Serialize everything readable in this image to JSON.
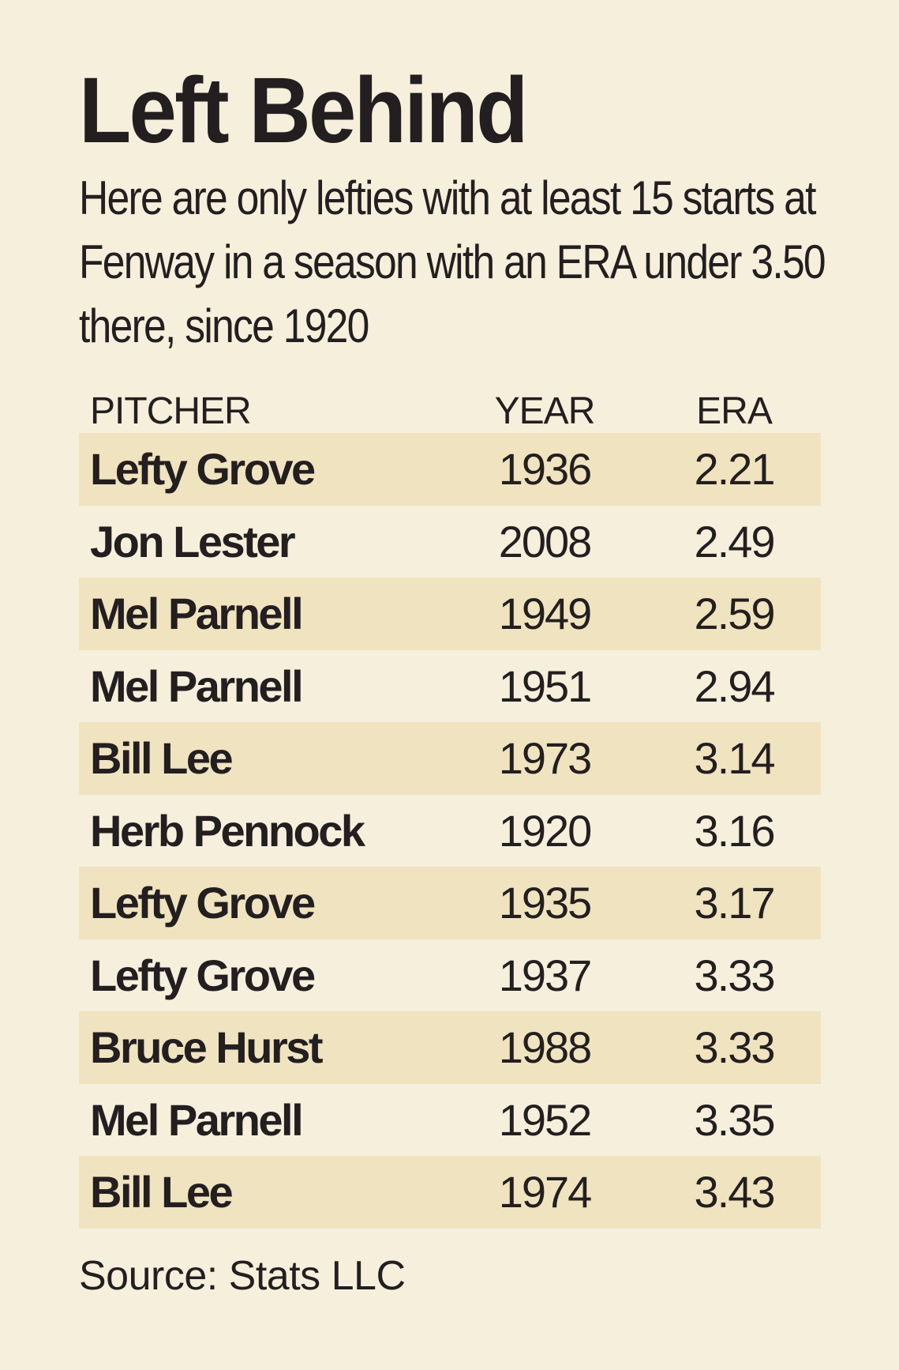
{
  "title": "Left Behind",
  "subtitle": "Here are only lefties with at least 15 starts at Fenway in a season with an ERA under 3.50 there, since 1920",
  "table": {
    "headers": [
      "PITCHER",
      "YEAR",
      "ERA"
    ],
    "rows": [
      {
        "pitcher": "Lefty Grove",
        "year": "1936",
        "era": "2.21"
      },
      {
        "pitcher": "Jon Lester",
        "year": "2008",
        "era": "2.49"
      },
      {
        "pitcher": "Mel Parnell",
        "year": "1949",
        "era": "2.59"
      },
      {
        "pitcher": "Mel Parnell",
        "year": "1951",
        "era": "2.94"
      },
      {
        "pitcher": "Bill Lee",
        "year": "1973",
        "era": "3.14"
      },
      {
        "pitcher": "Herb Pennock",
        "year": "1920",
        "era": "3.16"
      },
      {
        "pitcher": "Lefty Grove",
        "year": "1935",
        "era": "3.17"
      },
      {
        "pitcher": "Lefty Grove",
        "year": "1937",
        "era": "3.33"
      },
      {
        "pitcher": "Bruce Hurst",
        "year": "1988",
        "era": "3.33"
      },
      {
        "pitcher": "Mel Parnell",
        "year": "1952",
        "era": "3.35"
      },
      {
        "pitcher": "Bill Lee",
        "year": "1974",
        "era": "3.43"
      }
    ]
  },
  "source": "Source: Stats LLC",
  "colors": {
    "background": "#f5efdc",
    "stripe": "#f0e3bf",
    "text": "#231f20"
  }
}
